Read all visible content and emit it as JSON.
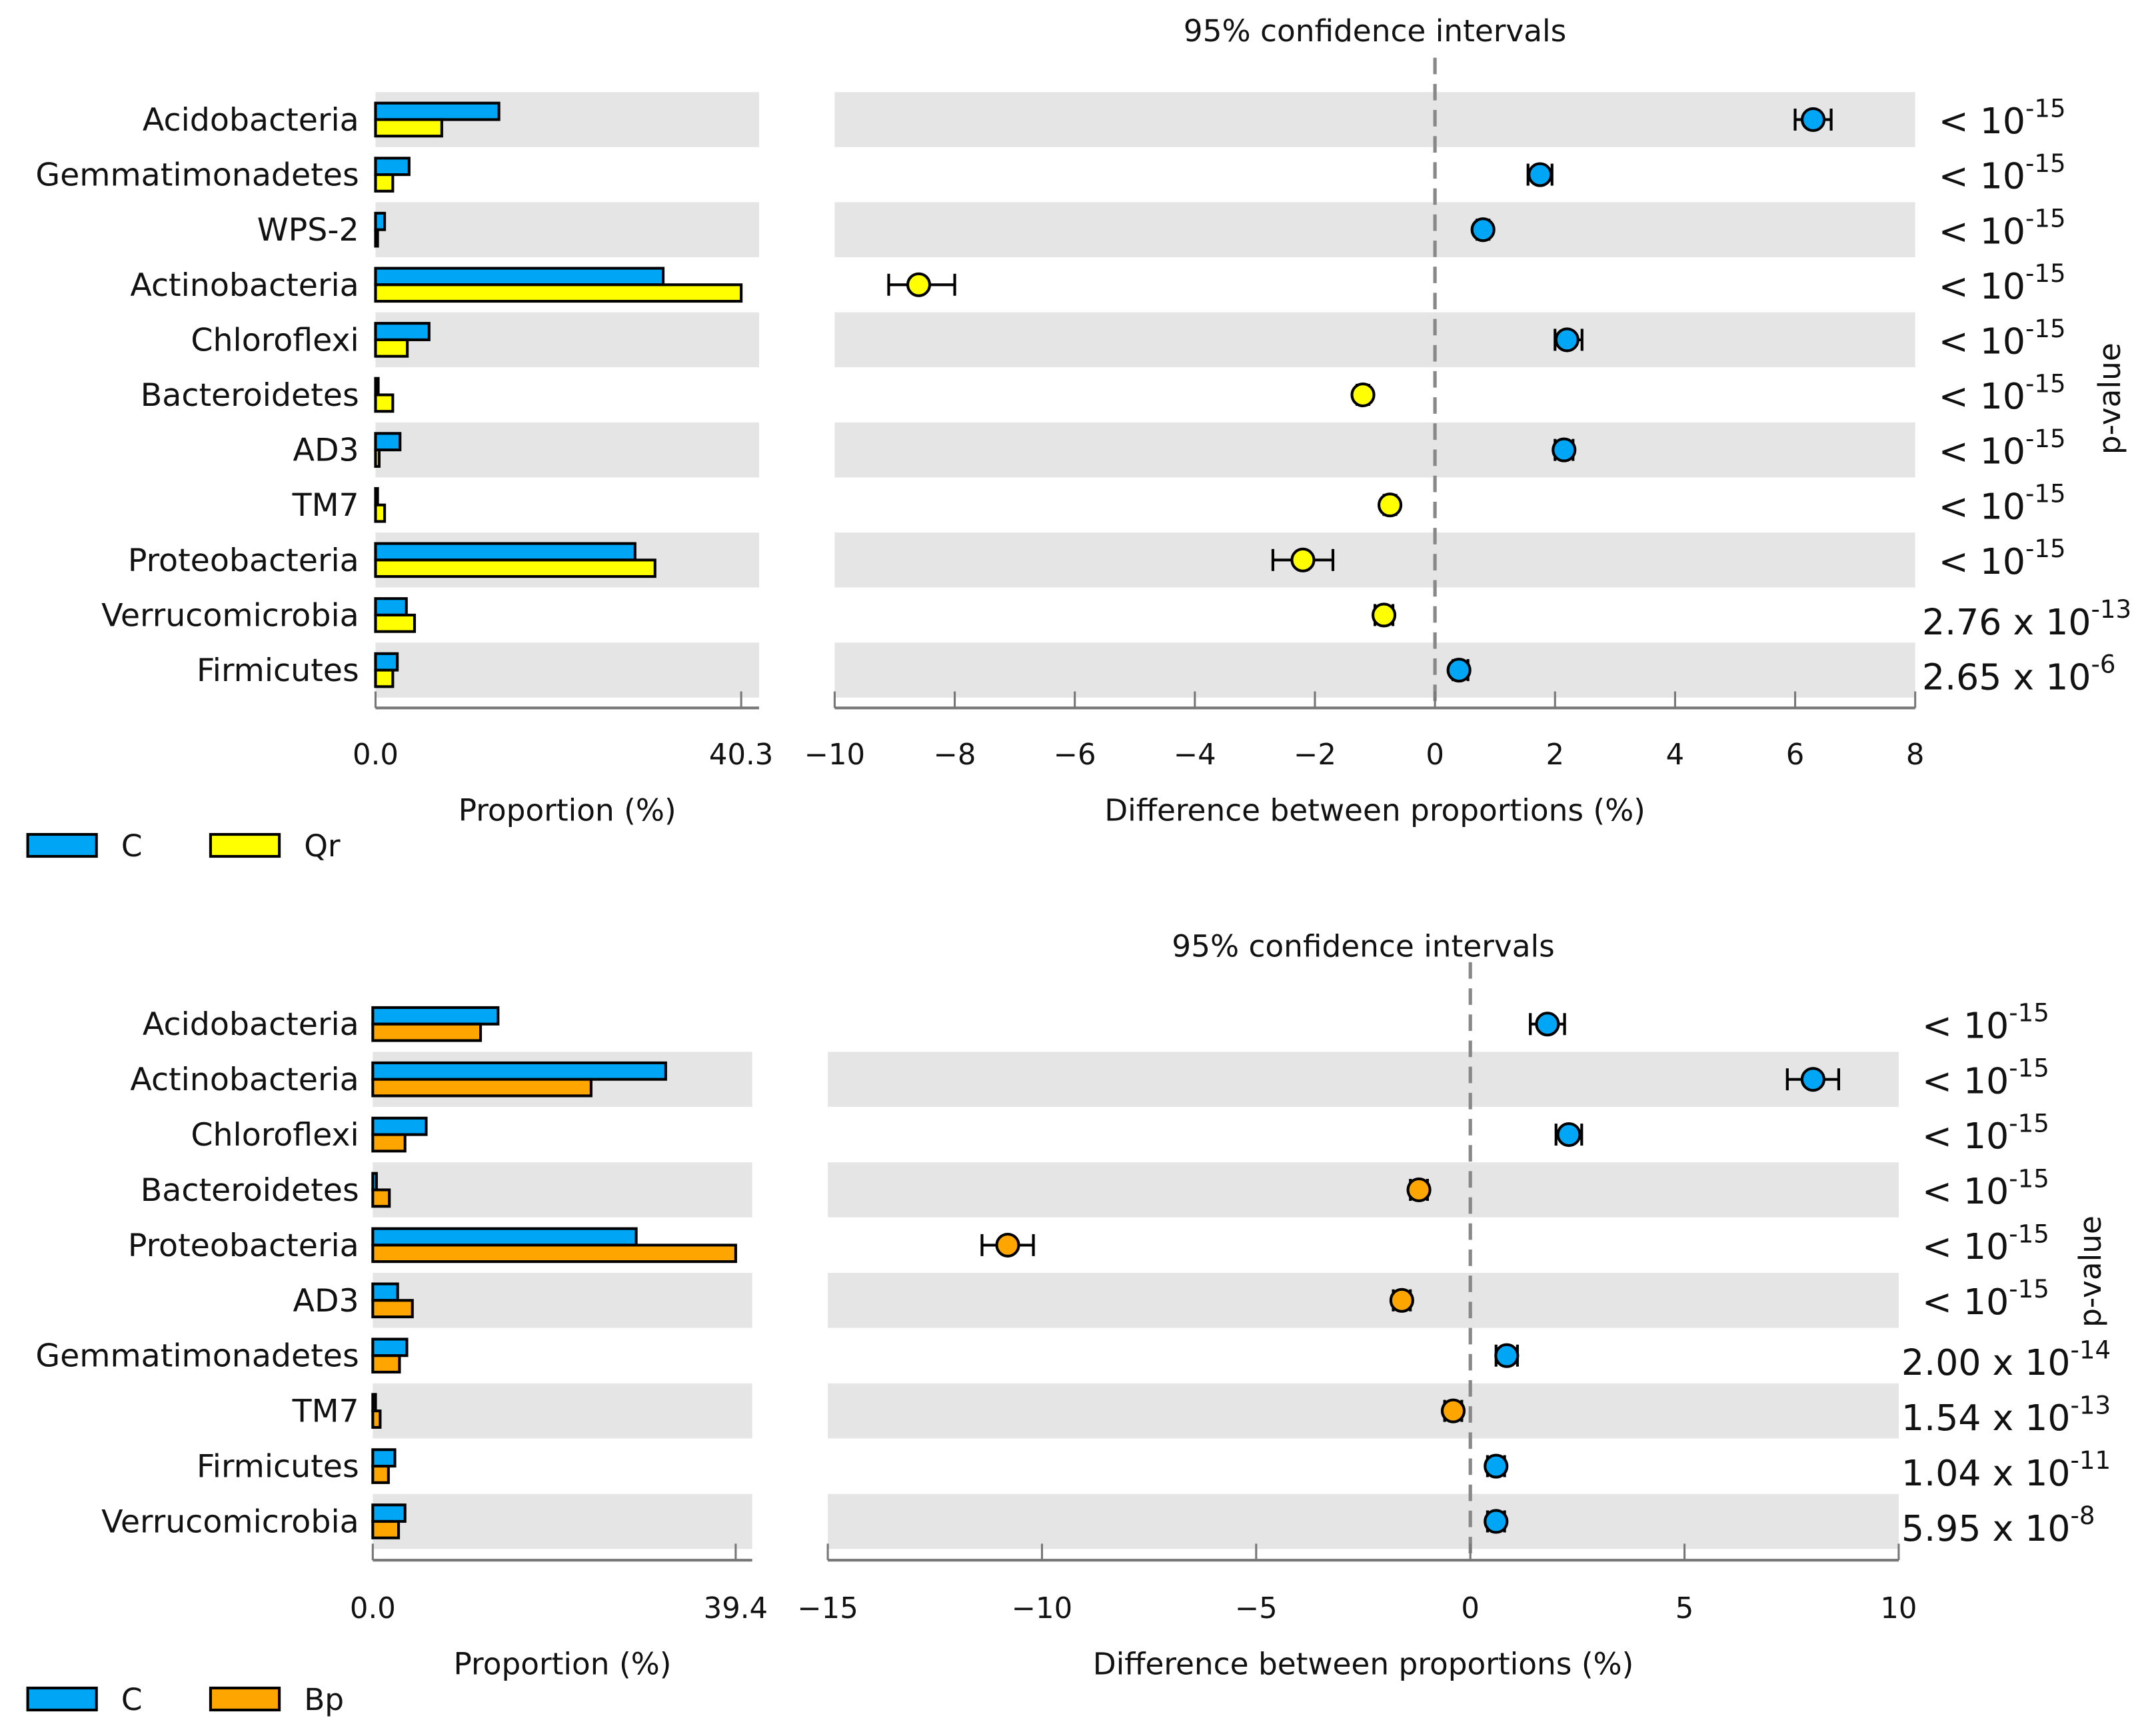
{
  "colors": {
    "C": "#00a6f6",
    "Qr": "#ffff00",
    "Bp": "#ffa500",
    "row_shade": "#e5e5e5"
  },
  "chart_data": [
    {
      "type": "bar+errorbar",
      "title": "95% confidence intervals",
      "bar_xlabel": "Proportion (%)",
      "diff_xlabel": "Difference between proportions (%)",
      "pvalue_label": "p-value",
      "bar_ticks": [
        "0.0",
        "40.3"
      ],
      "bar_xlim": [
        0,
        40.3
      ],
      "diff_xlim": [
        -10,
        8
      ],
      "diff_ticks": [
        "−10",
        "−8",
        "−6",
        "−4",
        "−2",
        "0",
        "2",
        "4",
        "6",
        "8"
      ],
      "diff_tick_values": [
        -10,
        -8,
        -6,
        -4,
        -2,
        0,
        2,
        4,
        6,
        8
      ],
      "legend": [
        {
          "name": "C",
          "color_key": "C"
        },
        {
          "name": "Qr",
          "color_key": "Qr"
        }
      ],
      "categories": [
        "Acidobacteria",
        "Gemmatimonadetes",
        "WPS-2",
        "Actinobacteria",
        "Chloroflexi",
        "Bacteroidetes",
        "AD3",
        "TM7",
        "Proteobacteria",
        "Verrucomicrobia",
        "Firmicutes"
      ],
      "series": [
        {
          "name": "C",
          "values": [
            13.6,
            3.7,
            1.0,
            31.7,
            5.9,
            0.3,
            2.7,
            0.2,
            28.6,
            3.4,
            2.4
          ]
        },
        {
          "name": "Qr",
          "values": [
            7.3,
            1.9,
            0.1,
            40.3,
            3.5,
            1.9,
            0.4,
            1.0,
            30.8,
            4.3,
            1.9
          ]
        }
      ],
      "differences": [
        6.3,
        1.75,
        0.8,
        -8.6,
        2.2,
        -1.2,
        2.15,
        -0.75,
        -2.2,
        -0.85,
        0.4
      ],
      "ci_low": [
        6.0,
        1.55,
        0.7,
        -9.1,
        2.0,
        -1.3,
        2.0,
        -0.85,
        -2.7,
        -1.0,
        0.3
      ],
      "ci_high": [
        6.6,
        1.95,
        0.9,
        -8.0,
        2.45,
        -1.1,
        2.3,
        -0.65,
        -1.7,
        -0.7,
        0.55
      ],
      "pvalues": [
        {
          "base": "< 10",
          "exp": "-15"
        },
        {
          "base": "< 10",
          "exp": "-15"
        },
        {
          "base": "< 10",
          "exp": "-15"
        },
        {
          "base": "< 10",
          "exp": "-15"
        },
        {
          "base": "< 10",
          "exp": "-15"
        },
        {
          "base": "< 10",
          "exp": "-15"
        },
        {
          "base": "< 10",
          "exp": "-15"
        },
        {
          "base": "< 10",
          "exp": "-15"
        },
        {
          "base": "< 10",
          "exp": "-15"
        },
        {
          "base": "2.76 x 10",
          "exp": "-13"
        },
        {
          "base": "2.65 x 10",
          "exp": "-6"
        }
      ]
    },
    {
      "type": "bar+errorbar",
      "title": "95% confidence intervals",
      "bar_xlabel": "Proportion (%)",
      "diff_xlabel": "Difference between proportions (%)",
      "pvalue_label": "p-value",
      "bar_ticks": [
        "0.0",
        "39.4"
      ],
      "bar_xlim": [
        0,
        39.4
      ],
      "diff_xlim": [
        -15,
        10
      ],
      "diff_ticks": [
        "−15",
        "−10",
        "−5",
        "0",
        "5",
        "10"
      ],
      "diff_tick_values": [
        -15,
        -10,
        -5,
        0,
        5,
        10
      ],
      "legend": [
        {
          "name": "C",
          "color_key": "C"
        },
        {
          "name": "Bp",
          "color_key": "Bp"
        }
      ],
      "categories": [
        "Acidobacteria",
        "Actinobacteria",
        "Chloroflexi",
        "Bacteroidetes",
        "Proteobacteria",
        "AD3",
        "Gemmatimonadetes",
        "TM7",
        "Firmicutes",
        "Verrucomicrobia"
      ],
      "series": [
        {
          "name": "C",
          "values": [
            13.6,
            31.8,
            5.8,
            0.4,
            28.6,
            2.7,
            3.7,
            0.3,
            2.4,
            3.5
          ]
        },
        {
          "name": "Bp",
          "values": [
            11.7,
            23.7,
            3.5,
            1.8,
            39.4,
            4.3,
            2.9,
            0.8,
            1.7,
            2.8
          ]
        }
      ],
      "differences": [
        1.8,
        8.0,
        2.3,
        -1.2,
        -10.8,
        -1.6,
        0.85,
        -0.4,
        0.6,
        0.6
      ],
      "ci_low": [
        1.4,
        7.4,
        2.0,
        -1.4,
        -11.4,
        -1.8,
        0.6,
        -0.6,
        0.4,
        0.4
      ],
      "ci_high": [
        2.2,
        8.6,
        2.6,
        -1.0,
        -10.2,
        -1.4,
        1.1,
        -0.2,
        0.8,
        0.8
      ],
      "pvalues": [
        {
          "base": "< 10",
          "exp": "-15"
        },
        {
          "base": "< 10",
          "exp": "-15"
        },
        {
          "base": "< 10",
          "exp": "-15"
        },
        {
          "base": "< 10",
          "exp": "-15"
        },
        {
          "base": "< 10",
          "exp": "-15"
        },
        {
          "base": "< 10",
          "exp": "-15"
        },
        {
          "base": "2.00 x 10",
          "exp": "-14"
        },
        {
          "base": "1.54 x 10",
          "exp": "-13"
        },
        {
          "base": "1.04 x 10",
          "exp": "-11"
        },
        {
          "base": "5.95 x 10",
          "exp": "-8"
        }
      ]
    }
  ]
}
